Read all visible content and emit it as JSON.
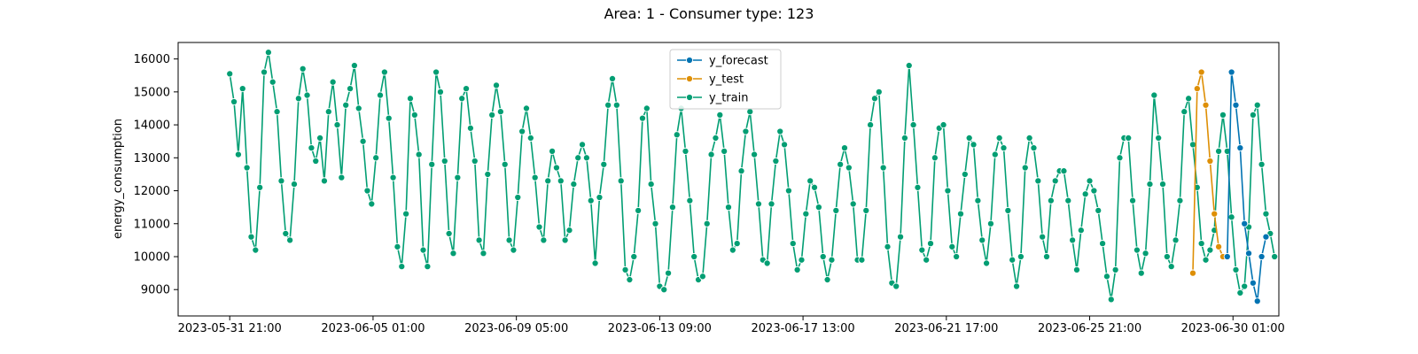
{
  "chart_data": {
    "type": "line",
    "title": "Area: 1 - Consumer type: 123",
    "xlabel": "",
    "ylabel": "energy_consumption",
    "ylim": [
      8200,
      16500
    ],
    "xlim": [
      "2023-05-30 09:00",
      "2023-07-01 09:00"
    ],
    "x_ticks": [
      "2023-05-31 21:00",
      "2023-06-05 01:00",
      "2023-06-09 05:00",
      "2023-06-13 09:00",
      "2023-06-17 13:00",
      "2023-06-21 17:00",
      "2023-06-25 21:00",
      "2023-06-30 01:00"
    ],
    "y_ticks": [
      9000,
      10000,
      11000,
      12000,
      13000,
      14000,
      15000,
      16000
    ],
    "legend": {
      "position": "top-center",
      "entries": [
        "y_forecast",
        "y_test",
        "y_train"
      ]
    },
    "grid": false,
    "series": [
      {
        "name": "y_forecast",
        "color": "#0173b2",
        "x": [
          "2023-06-29 21:00",
          "2023-06-30 00:00",
          "2023-06-30 03:00",
          "2023-06-30 06:00",
          "2023-06-30 09:00",
          "2023-06-30 12:00",
          "2023-06-30 15:00",
          "2023-06-30 18:00",
          "2023-06-30 21:00",
          "2023-07-01 00:00"
        ],
        "y": [
          10000,
          15600,
          14600,
          13300,
          11000,
          10100,
          9200,
          8650,
          10000,
          10600
        ]
      },
      {
        "name": "y_test",
        "color": "#de8f05",
        "x": [
          "2023-06-28 21:00",
          "2023-06-29 00:00",
          "2023-06-29 03:00",
          "2023-06-29 06:00",
          "2023-06-29 09:00",
          "2023-06-29 12:00",
          "2023-06-29 15:00",
          "2023-06-29 18:00"
        ],
        "y": [
          9500,
          15100,
          15600,
          14600,
          12900,
          11300,
          10300,
          10000
        ]
      },
      {
        "name": "y_train",
        "color": "#029e73",
        "start": "2023-05-31 21:00",
        "step_hours": 3,
        "y": [
          15550,
          14700,
          13100,
          15100,
          12700,
          10600,
          10200,
          12100,
          15600,
          16200,
          15300,
          14400,
          12300,
          10700,
          10500,
          12200,
          14800,
          15700,
          14900,
          13300,
          12900,
          13600,
          12300,
          14400,
          15300,
          14000,
          12400,
          14600,
          15100,
          15800,
          14500,
          13500,
          12000,
          11600,
          13000,
          14900,
          15600,
          14200,
          12400,
          10300,
          9700,
          11300,
          14800,
          14300,
          13100,
          10200,
          9700,
          12800,
          15600,
          15000,
          12900,
          10700,
          10100,
          12400,
          14800,
          15100,
          13900,
          12900,
          10500,
          10100,
          12500,
          14300,
          15200,
          14400,
          12800,
          10500,
          10200,
          11800,
          13800,
          14500,
          13600,
          12400,
          10900,
          10500,
          12300,
          13200,
          12700,
          12300,
          10500,
          10800,
          12200,
          13000,
          13400,
          13000,
          11700,
          9800,
          11800,
          12800,
          14600,
          15400,
          14600,
          12300,
          9600,
          9300,
          10000,
          11400,
          14200,
          14500,
          12200,
          11000,
          9100,
          9000,
          9500,
          11500,
          13700,
          14500,
          13200,
          11700,
          10000,
          9300,
          9400,
          11000,
          13100,
          13600,
          14300,
          13200,
          11500,
          10200,
          10400,
          12600,
          13800,
          14400,
          13100,
          11600,
          9900,
          9800,
          11600,
          12900,
          13800,
          13400,
          12000,
          10400,
          9600,
          9900,
          11300,
          12300,
          12100,
          11500,
          10000,
          9300,
          9900,
          11400,
          12800,
          13300,
          12700,
          11600,
          9900,
          9900,
          11400,
          14000,
          14800,
          15000,
          12700,
          10300,
          9200,
          9100,
          10600,
          13600,
          15800,
          14000,
          12100,
          10200,
          9900,
          10400,
          13000,
          13900,
          14000,
          12000,
          10300,
          10000,
          11300,
          12500,
          13600,
          13400,
          11700,
          10500,
          9800,
          11000,
          13100,
          13600,
          13300,
          11400,
          9900,
          9100,
          10000,
          12700,
          13600,
          13300,
          12300,
          10600,
          10000,
          11700,
          12300,
          12600,
          12600,
          11700,
          10500,
          9600,
          10800,
          11900,
          12300,
          12000,
          11400,
          10400,
          9400,
          8700,
          9600,
          13000,
          13600,
          13600,
          11700,
          10200,
          9500,
          10100,
          12200,
          14900,
          13600,
          12200,
          10000,
          9700,
          10500,
          11700,
          14400,
          14800,
          13400,
          12100,
          10400,
          9900,
          10200,
          10800,
          13200,
          14300,
          13200,
          11200,
          9600,
          8900,
          9100,
          10900,
          14300,
          14600,
          12800,
          11300,
          10700,
          10000
        ]
      }
    ]
  }
}
